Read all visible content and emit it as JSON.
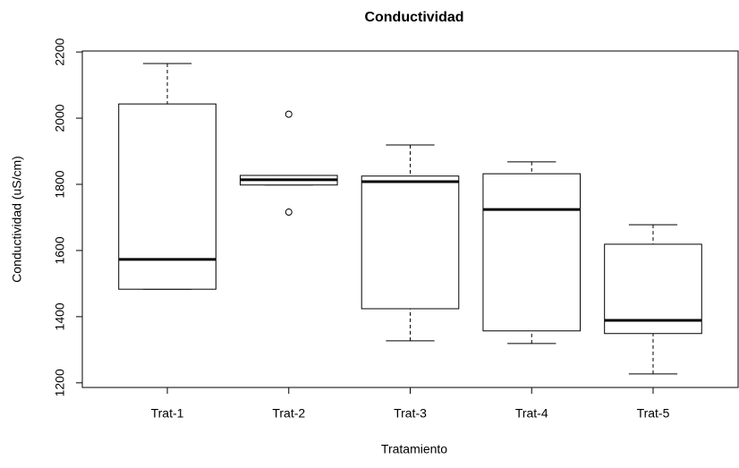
{
  "chart_data": {
    "type": "box",
    "title": "Conductividad",
    "x_label": "Tratamiento",
    "y_label": "Conductividad (uS/cm)",
    "categories": [
      "Trat-1",
      "Trat-2",
      "Trat-3",
      "Trat-4",
      "Trat-5"
    ],
    "boxes": [
      {
        "min": 1483,
        "q1": 1483,
        "median": 1573,
        "q3": 2043,
        "max": 2165,
        "outliers": []
      },
      {
        "min": 1798,
        "q1": 1798,
        "median": 1814,
        "q3": 1827,
        "max": 1827,
        "outliers": [
          2012,
          1716
        ]
      },
      {
        "min": 1327,
        "q1": 1424,
        "median": 1808,
        "q3": 1825,
        "max": 1919,
        "outliers": []
      },
      {
        "min": 1319,
        "q1": 1357,
        "median": 1724,
        "q3": 1832,
        "max": 1868,
        "outliers": []
      },
      {
        "min": 1227,
        "q1": 1349,
        "median": 1389,
        "q3": 1619,
        "max": 1678,
        "outliers": []
      }
    ],
    "color": "#000000",
    "ylim": [
      1186,
      2203
    ],
    "yticks": [
      1200,
      1400,
      1600,
      1800,
      2000,
      2200
    ]
  }
}
